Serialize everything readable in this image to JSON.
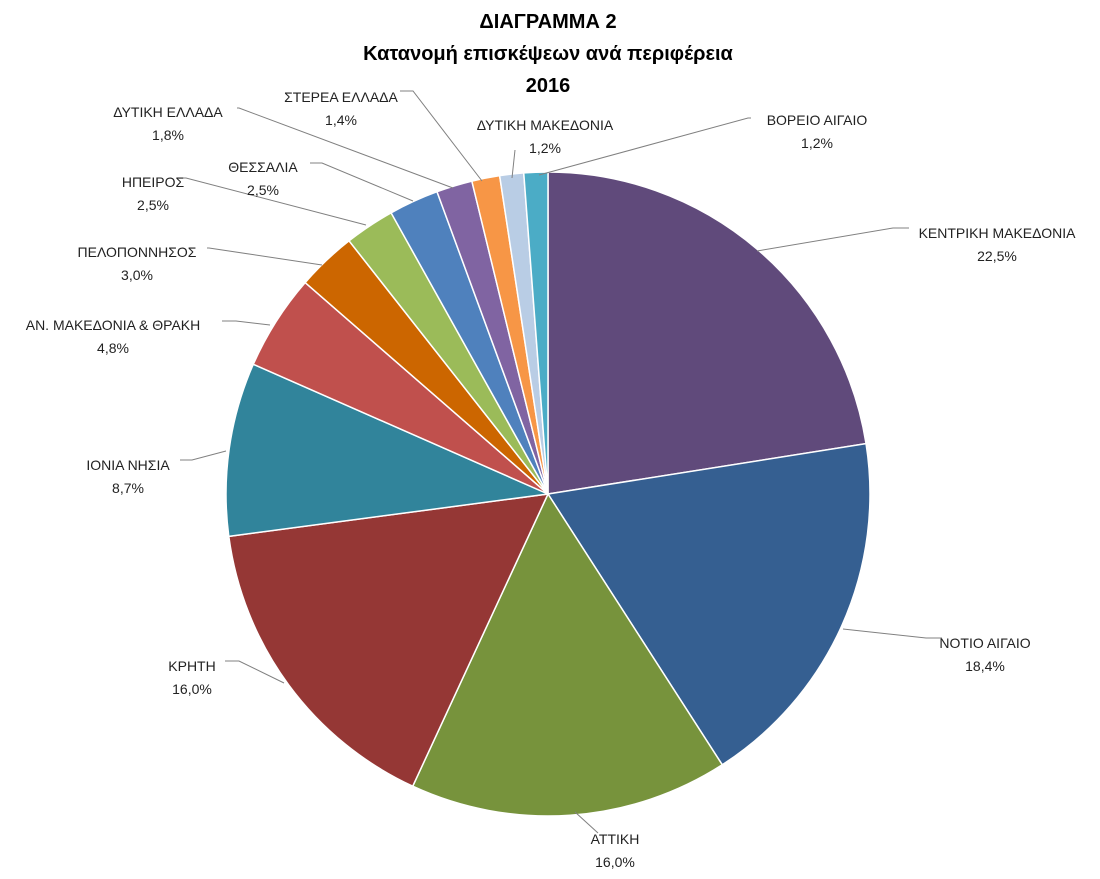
{
  "chart_data": {
    "type": "pie",
    "title": [
      "ΔΙΑΓΡΑΜΜΑ 2",
      "Κατανομή επισκέψεων ανά περιφέρεια",
      "2016"
    ],
    "slices": [
      {
        "label": "ΚΕΝΤΡΙΚΗ ΜΑΚΕΔΟΝΙΑ",
        "value_label": "22,5%",
        "value": 22.5,
        "color": "#604A7B"
      },
      {
        "label": "ΝΟΤΙΟ ΑΙΓΑΙΟ",
        "value_label": "18,4%",
        "value": 18.4,
        "color": "#355F91"
      },
      {
        "label": "ΑΤΤΙΚΗ",
        "value_label": "16,0%",
        "value": 16.0,
        "color": "#77933C"
      },
      {
        "label": "ΚΡΗΤΗ",
        "value_label": "16,0%",
        "value": 16.0,
        "color": "#953735"
      },
      {
        "label": "ΙΟΝΙΑ ΝΗΣΙΑ",
        "value_label": "8,7%",
        "value": 8.7,
        "color": "#31849B"
      },
      {
        "label": "ΑΝ. ΜΑΚΕΔΟΝΙΑ & ΘΡΑΚΗ",
        "value_label": "4,8%",
        "value": 4.8,
        "color": "#C0504D"
      },
      {
        "label": "ΠΕΛΟΠΟΝΝΗΣΟΣ",
        "value_label": "3,0%",
        "value": 3.0,
        "color": "#CC6600"
      },
      {
        "label": "ΗΠΕΙΡΟΣ",
        "value_label": "2,5%",
        "value": 2.5,
        "color": "#9BBB59"
      },
      {
        "label": "ΘΕΣΣΑΛΙΑ",
        "value_label": "2,5%",
        "value": 2.5,
        "color": "#4F81BD"
      },
      {
        "label": "ΔΥΤΙΚΗ ΕΛΛΑΔΑ",
        "value_label": "1,8%",
        "value": 1.8,
        "color": "#8064A2"
      },
      {
        "label": "ΣΤΕΡΕΑ ΕΛΛΑΔΑ",
        "value_label": "1,4%",
        "value": 1.4,
        "color": "#F79646"
      },
      {
        "label": "ΔΥΤΙΚΗ ΜΑΚΕΔΟΝΙΑ",
        "value_label": "1,2%",
        "value": 1.2,
        "color": "#B9CDE5"
      },
      {
        "label": "ΒΟΡΕΙΟ ΑΙΓΑΙΟ",
        "value_label": "1,2%",
        "value": 1.2,
        "color": "#4BACC6"
      }
    ],
    "legend": "none"
  }
}
